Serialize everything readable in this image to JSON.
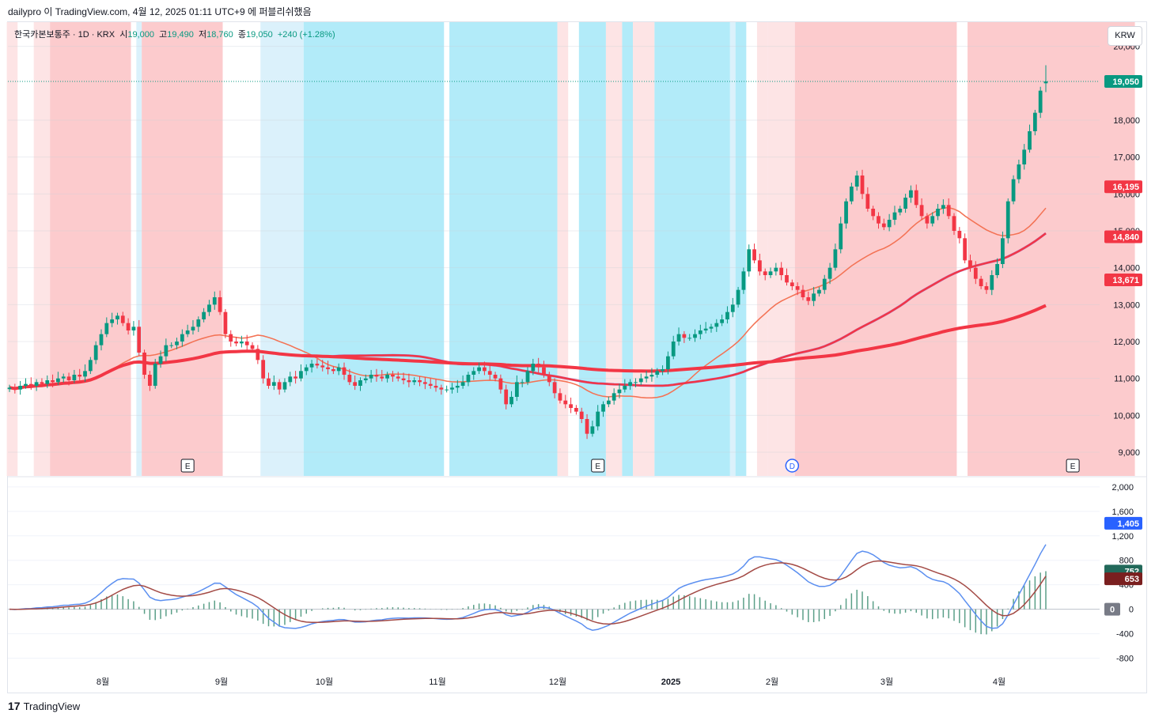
{
  "header": {
    "publish_info": "dailypro 이 TradingView.com, 4월 12, 2025 01:11 UTC+9 에 퍼블리쉬했음"
  },
  "legend": {
    "symbol": "한국카본보통주 · 1D · KRX",
    "open_label": "시",
    "open": "19,000",
    "high_label": "고",
    "high": "19,490",
    "low_label": "저",
    "low": "18,760",
    "close_label": "종",
    "close": "19,050",
    "change": "+240 (+1.28%)"
  },
  "currency_button": "KRW",
  "footer": {
    "brand": "TradingView",
    "logo_glyph": "17"
  },
  "colors": {
    "up": "#089981",
    "down": "#f23645",
    "grid": "#f0f3fa",
    "bull_zone": "#fccbcd",
    "bull_zone_light": "#fde4e5",
    "bear_zone": "#b2ebf9",
    "bear_zone_light": "#dbf1fb",
    "macd": "#5b8ff0",
    "signal": "#a34a45",
    "hist": "#3f8f74",
    "ma_fast": "#f23645",
    "ma_orange": "#f5b86b",
    "ma_purple": "#8c78e8"
  },
  "chart_data": [
    {
      "type": "candlestick",
      "name": "price",
      "x_tick_labels": [
        "8월",
        "9월",
        "10월",
        "11월",
        "12월",
        "2025",
        "2월",
        "3월",
        "4월"
      ],
      "y_tick_labels": [
        "9,000",
        "10,000",
        "11,000",
        "12,000",
        "13,000",
        "14,000",
        "15,000",
        "16,000",
        "17,000",
        "18,000",
        "20,000"
      ],
      "ylim": [
        8400,
        20400
      ],
      "price_scale_badges": [
        {
          "text": "19,050",
          "value": 19050,
          "color": "#089981"
        },
        {
          "text": "16,195",
          "value": 16195,
          "color": "#f23645"
        },
        {
          "text": "14,840",
          "value": 14840,
          "color": "#f23645"
        },
        {
          "text": "13,671",
          "value": 13671,
          "color": "#f23645"
        }
      ],
      "event_markers": [
        {
          "label": "E",
          "date_index": 33
        },
        {
          "label": "E",
          "date_index": 109
        },
        {
          "label": "D",
          "date_index": 145
        },
        {
          "label": "E",
          "date_index": 197
        }
      ],
      "zones": [
        {
          "from": 0,
          "to": 2,
          "kind": "bull_light"
        },
        {
          "from": 5,
          "to": 8,
          "kind": "bull_light"
        },
        {
          "from": 8,
          "to": 23,
          "kind": "bull"
        },
        {
          "from": 24,
          "to": 25,
          "kind": "bear_light"
        },
        {
          "from": 25,
          "to": 40,
          "kind": "bull"
        },
        {
          "from": 47,
          "to": 55,
          "kind": "bear_light"
        },
        {
          "from": 55,
          "to": 81,
          "kind": "bear"
        },
        {
          "from": 82,
          "to": 102,
          "kind": "bear"
        },
        {
          "from": 102,
          "to": 104,
          "kind": "bull_light"
        },
        {
          "from": 106,
          "to": 111,
          "kind": "bear"
        },
        {
          "from": 111,
          "to": 114,
          "kind": "bull_light"
        },
        {
          "from": 114,
          "to": 116,
          "kind": "bear"
        },
        {
          "from": 116,
          "to": 120,
          "kind": "bull_light"
        },
        {
          "from": 120,
          "to": 134,
          "kind": "bear"
        },
        {
          "from": 134,
          "to": 135,
          "kind": "bear_light"
        },
        {
          "from": 135,
          "to": 137,
          "kind": "bear"
        },
        {
          "from": 139,
          "to": 141,
          "kind": "bull_light"
        },
        {
          "from": 141,
          "to": 146,
          "kind": "bull_light"
        },
        {
          "from": 146,
          "to": 176,
          "kind": "bull"
        },
        {
          "from": 178,
          "to": 209,
          "kind": "bull"
        },
        {
          "from": 215,
          "to": 219,
          "kind": "bear_light"
        },
        {
          "from": 219,
          "to": 230,
          "kind": "bull"
        }
      ],
      "closes": [
        10750,
        10700,
        10800,
        10850,
        10800,
        10900,
        10850,
        10950,
        10900,
        11000,
        11050,
        10950,
        11100,
        11050,
        11200,
        11500,
        11900,
        12200,
        12500,
        12600,
        12700,
        12500,
        12300,
        12400,
        11700,
        11100,
        10800,
        11400,
        11600,
        11900,
        11900,
        12000,
        12200,
        12300,
        12400,
        12600,
        12800,
        13000,
        13200,
        12800,
        12200,
        12000,
        11950,
        12000,
        11900,
        11800,
        11500,
        11000,
        10800,
        10900,
        10700,
        10900,
        11050,
        11000,
        11200,
        11300,
        11400,
        11350,
        11300,
        11250,
        11200,
        11300,
        11100,
        10900,
        10800,
        10950,
        11000,
        11100,
        11050,
        11000,
        11100,
        11050,
        11000,
        10950,
        10900,
        10950,
        10900,
        10850,
        10800,
        10750,
        10700,
        10700,
        10750,
        10800,
        10900,
        11100,
        11200,
        11300,
        11200,
        11100,
        11000,
        10700,
        10300,
        10500,
        10900,
        10900,
        11200,
        11400,
        11300,
        11100,
        10900,
        10600,
        10400,
        10300,
        10200,
        10100,
        9900,
        9500,
        9700,
        10100,
        10300,
        10400,
        10600,
        10700,
        10800,
        10900,
        10900,
        11000,
        11050,
        11100,
        11200,
        11250,
        11600,
        12000,
        12200,
        12100,
        12100,
        12200,
        12300,
        12350,
        12400,
        12500,
        12600,
        12800,
        13000,
        13400,
        13900,
        14500,
        14200,
        13900,
        13800,
        13900,
        14000,
        13800,
        13600,
        13500,
        13400,
        13200,
        13100,
        13300,
        13400,
        13700,
        14000,
        14500,
        15200,
        15800,
        16200,
        16500,
        16000,
        15600,
        15400,
        15200,
        15100,
        15300,
        15500,
        15600,
        15900,
        16100,
        15700,
        15400,
        15200,
        15400,
        15600,
        15700,
        15400,
        15000,
        14800,
        14200,
        14000,
        13700,
        13500,
        13400,
        13800,
        14100,
        14800,
        15800,
        16400,
        16800,
        17200,
        17700,
        18200,
        18800,
        19050
      ],
      "macd_panel": {
        "ylim": [
          -1000,
          2050
        ],
        "y_tick_labels": [
          "2,000",
          "1,600",
          "1,200",
          "800",
          "400",
          "0",
          "-400",
          "-800"
        ],
        "badges": [
          {
            "text": "1,405",
            "value": 1405,
            "color": "#2962ff"
          },
          {
            "text": "752",
            "value": 752,
            "color": "#22695a"
          },
          {
            "text": "653",
            "value": 653,
            "color": "#7a1f1f"
          },
          {
            "text": "0",
            "value": 0,
            "color": "#787b86"
          }
        ]
      }
    }
  ]
}
